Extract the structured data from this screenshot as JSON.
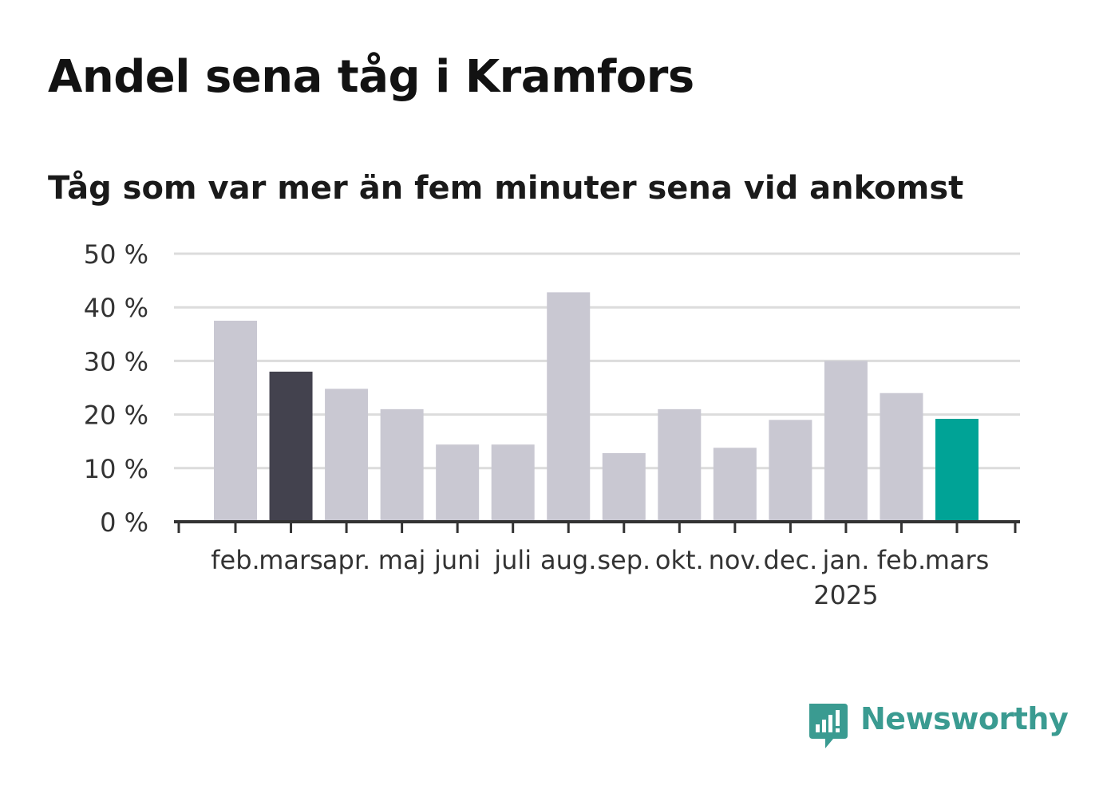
{
  "title": "Andel sena tåg i Kramfors",
  "subtitle": "Tåg som var mer än fem minuter sena vid ankomst",
  "brand": {
    "name": "Newsworthy",
    "color": "#3a9b91"
  },
  "colors": {
    "default_bar": "#c9c8d2",
    "highlight_prev_year": "#43424e",
    "highlight_current": "#00a396",
    "grid": "#dcdcdc",
    "axis": "#333333",
    "text": "#333333"
  },
  "chart_data": {
    "type": "bar",
    "title": "Andel sena tåg i Kramfors",
    "subtitle": "Tåg som var mer än fem minuter sena vid ankomst",
    "categories": [
      "feb.",
      "mars",
      "apr.",
      "maj",
      "juni",
      "juli",
      "aug.",
      "sep.",
      "okt.",
      "nov.",
      "dec.",
      "jan.",
      "feb.",
      "mars"
    ],
    "category_sublabels": [
      "",
      "",
      "",
      "",
      "",
      "",
      "",
      "",
      "",
      "",
      "",
      "2025",
      "",
      ""
    ],
    "values": [
      37.5,
      28.0,
      24.8,
      21.0,
      14.4,
      14.4,
      42.8,
      12.8,
      21.0,
      13.8,
      19.0,
      30.0,
      24.0,
      19.2
    ],
    "highlight": [
      "default",
      "dark",
      "default",
      "default",
      "default",
      "default",
      "default",
      "default",
      "default",
      "default",
      "default",
      "default",
      "default",
      "accent"
    ],
    "ylim": [
      0,
      50
    ],
    "yticks": [
      0,
      10,
      20,
      30,
      40,
      50
    ],
    "ytick_labels": [
      "0 %",
      "10 %",
      "20 %",
      "30 %",
      "40 %",
      "50 %"
    ],
    "xlabel": "",
    "ylabel": "",
    "grid": true
  }
}
